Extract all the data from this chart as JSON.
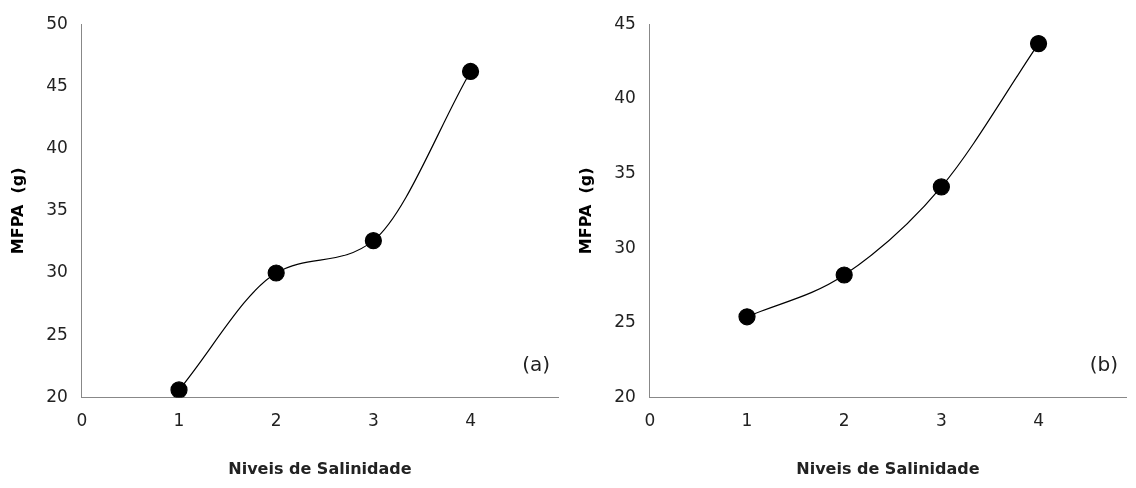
{
  "chart_data": [
    {
      "type": "line",
      "xlabel": "Niveis de Salinidade",
      "ylabel": "MFPA  (g)",
      "x": [
        1,
        2,
        3,
        4
      ],
      "xlim": [
        0,
        4.9
      ],
      "xticks": [
        0,
        1,
        2,
        3,
        4
      ],
      "ylim": [
        20,
        50
      ],
      "yticks": [
        20,
        25,
        30,
        35,
        40,
        45,
        50
      ],
      "marker": "circle",
      "line_style": "solid",
      "annotations": [
        "(a)"
      ],
      "series": [
        {
          "color": "#000000",
          "values": [
            20.6,
            30.0,
            32.6,
            46.2
          ]
        }
      ]
    },
    {
      "type": "line",
      "xlabel": "Niveis de Salinidade",
      "ylabel": "MFPA  (g)",
      "x": [
        1,
        2,
        3,
        4
      ],
      "xlim": [
        0,
        4.9
      ],
      "xticks": [
        0,
        1,
        2,
        3,
        4
      ],
      "ylim": [
        20,
        45
      ],
      "yticks": [
        20,
        25,
        30,
        35,
        40,
        45
      ],
      "marker": "circle",
      "line_style": "solid",
      "annotations": [
        "(b)"
      ],
      "series": [
        {
          "color": "#000000",
          "values": [
            25.4,
            28.2,
            34.1,
            43.7
          ]
        }
      ]
    }
  ]
}
